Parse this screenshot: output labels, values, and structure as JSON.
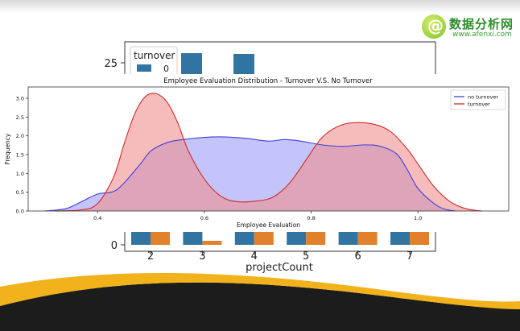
{
  "brand": {
    "name": "数据分析网",
    "url": "www.afenxi.com",
    "mark": "@"
  },
  "background_chart": {
    "type": "bar",
    "xlabel": "projectCount",
    "categories": [
      "2",
      "3",
      "4",
      "5",
      "6",
      "7"
    ],
    "legend_title": "turnover",
    "legend_first_entry": "0",
    "visible_ytick_top": "25",
    "visible_ytick_bottom": "0",
    "colors": {
      "0": "#3274a1",
      "1": "#e1812c"
    }
  },
  "chart_data": {
    "type": "area",
    "title": "Employee Evaluation Distribution - Turnover V.S. No Turnover",
    "xlabel": "Employee Evaluation",
    "ylabel": "Frequency",
    "xlim": [
      0.27,
      1.17
    ],
    "ylim": [
      0,
      3.3
    ],
    "x_ticks": [
      0.4,
      0.6,
      0.8,
      1.0
    ],
    "x_tick_labels": [
      "0.4",
      "0.6",
      "0.8",
      "1.0"
    ],
    "y_ticks": [
      0.0,
      0.5,
      1.0,
      1.5,
      2.0,
      2.5,
      3.0
    ],
    "y_tick_labels": [
      "0.0",
      "0.5",
      "1.0",
      "1.5",
      "2.0",
      "2.5",
      "3.0"
    ],
    "legend_position": "top-right",
    "series": [
      {
        "name": "no turnover",
        "line_color": "#3f3fdb",
        "fill_color": "#9c9cf7",
        "points": [
          [
            0.3,
            0.0
          ],
          [
            0.34,
            0.06
          ],
          [
            0.37,
            0.25
          ],
          [
            0.4,
            0.45
          ],
          [
            0.43,
            0.52
          ],
          [
            0.45,
            0.75
          ],
          [
            0.48,
            1.25
          ],
          [
            0.5,
            1.6
          ],
          [
            0.53,
            1.82
          ],
          [
            0.56,
            1.9
          ],
          [
            0.6,
            1.96
          ],
          [
            0.64,
            1.97
          ],
          [
            0.68,
            1.93
          ],
          [
            0.72,
            1.86
          ],
          [
            0.75,
            1.9
          ],
          [
            0.78,
            1.86
          ],
          [
            0.82,
            1.76
          ],
          [
            0.86,
            1.72
          ],
          [
            0.9,
            1.76
          ],
          [
            0.93,
            1.72
          ],
          [
            0.96,
            1.52
          ],
          [
            0.98,
            1.1
          ],
          [
            1.0,
            0.6
          ],
          [
            1.03,
            0.2
          ],
          [
            1.05,
            0.05
          ],
          [
            1.07,
            0.0
          ]
        ]
      },
      {
        "name": "turnover",
        "line_color": "#d12a2a",
        "fill_color": "#f09090",
        "points": [
          [
            0.32,
            0.0
          ],
          [
            0.37,
            0.03
          ],
          [
            0.4,
            0.2
          ],
          [
            0.43,
            0.9
          ],
          [
            0.45,
            1.8
          ],
          [
            0.47,
            2.6
          ],
          [
            0.49,
            3.05
          ],
          [
            0.51,
            3.12
          ],
          [
            0.53,
            2.9
          ],
          [
            0.55,
            2.35
          ],
          [
            0.57,
            1.6
          ],
          [
            0.6,
            0.85
          ],
          [
            0.63,
            0.4
          ],
          [
            0.66,
            0.25
          ],
          [
            0.7,
            0.27
          ],
          [
            0.73,
            0.38
          ],
          [
            0.76,
            0.75
          ],
          [
            0.79,
            1.35
          ],
          [
            0.82,
            1.95
          ],
          [
            0.85,
            2.25
          ],
          [
            0.88,
            2.35
          ],
          [
            0.92,
            2.3
          ],
          [
            0.95,
            2.1
          ],
          [
            0.98,
            1.65
          ],
          [
            1.0,
            1.25
          ],
          [
            1.03,
            0.65
          ],
          [
            1.06,
            0.25
          ],
          [
            1.09,
            0.06
          ],
          [
            1.12,
            0.0
          ]
        ]
      }
    ]
  }
}
